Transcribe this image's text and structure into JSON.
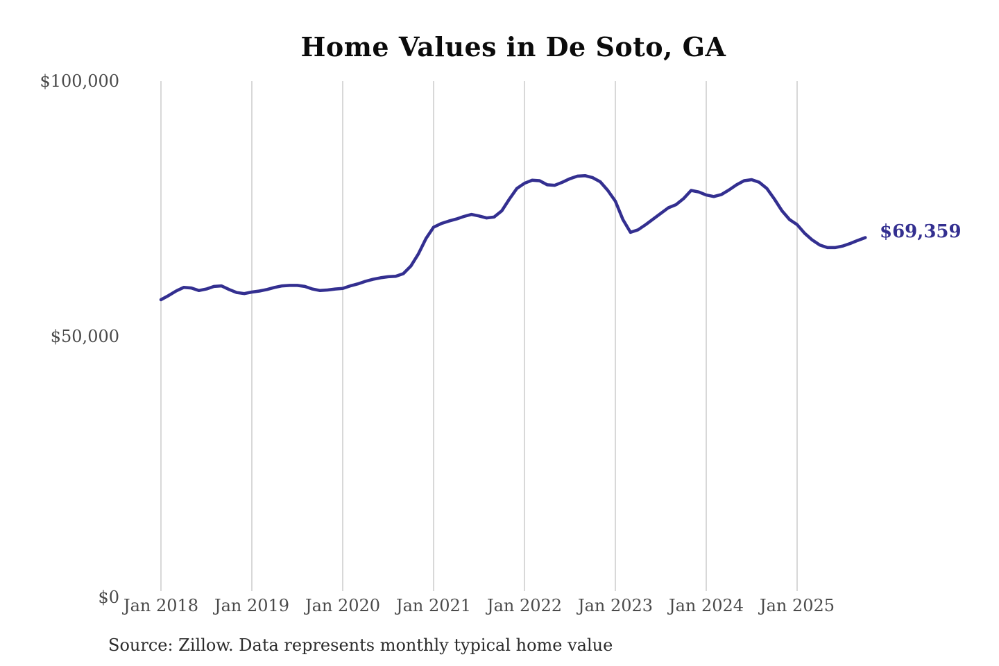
{
  "title": "Home Values in De Soto, GA",
  "source_note": "Source: Zillow. Data represents monthly typical home value",
  "colors": {
    "line": "#332f90",
    "end_label": "#332f90",
    "gridline": "#cccccc",
    "tick_label": "#4a4a4a",
    "title": "#0b0b0b",
    "source": "#2b2b2b",
    "background": "#ffffff"
  },
  "chart_data": {
    "type": "line",
    "title": "Home Values in De Soto, GA",
    "unit": "USD",
    "x_interval": "monthly",
    "x_start": "Jan 2018",
    "x_end": "Oct 2025",
    "xlabel": "",
    "ylabel": "",
    "ylim": [
      0,
      100000
    ],
    "grid": "vertical-only",
    "legend": "none",
    "x_ticks": [
      "Jan 2018",
      "Jan 2019",
      "Jan 2020",
      "Jan 2021",
      "Jan 2022",
      "Jan 2023",
      "Jan 2024",
      "Jan 2025"
    ],
    "y_ticks": [
      {
        "value": 0,
        "label": "$0"
      },
      {
        "value": 50000,
        "label": "$50,000"
      },
      {
        "value": 100000,
        "label": "$100,000"
      }
    ],
    "end_label": "$69,359",
    "latest_value": 69359,
    "series": [
      {
        "name": "Monthly typical home value",
        "values": [
          57200,
          58000,
          58900,
          59600,
          59500,
          59000,
          59300,
          59800,
          59900,
          59200,
          58600,
          58400,
          58700,
          58900,
          59200,
          59600,
          59900,
          60000,
          60000,
          59800,
          59300,
          59000,
          59100,
          59300,
          59400,
          59900,
          60300,
          60800,
          61200,
          61500,
          61700,
          61800,
          62300,
          63800,
          66200,
          69200,
          71400,
          72100,
          72600,
          73000,
          73500,
          73900,
          73600,
          73200,
          73400,
          74600,
          76900,
          79000,
          80000,
          80600,
          80500,
          79700,
          79600,
          80200,
          80900,
          81400,
          81500,
          81100,
          80300,
          78600,
          76500,
          72900,
          70400,
          70900,
          71900,
          73000,
          74100,
          75200,
          75800,
          77000,
          78600,
          78300,
          77700,
          77400,
          77800,
          78700,
          79700,
          80500,
          80700,
          80200,
          79000,
          76900,
          74600,
          72900,
          71900,
          70200,
          68900,
          67900,
          67400,
          67400,
          67700,
          68200,
          68800,
          69359
        ]
      }
    ]
  }
}
